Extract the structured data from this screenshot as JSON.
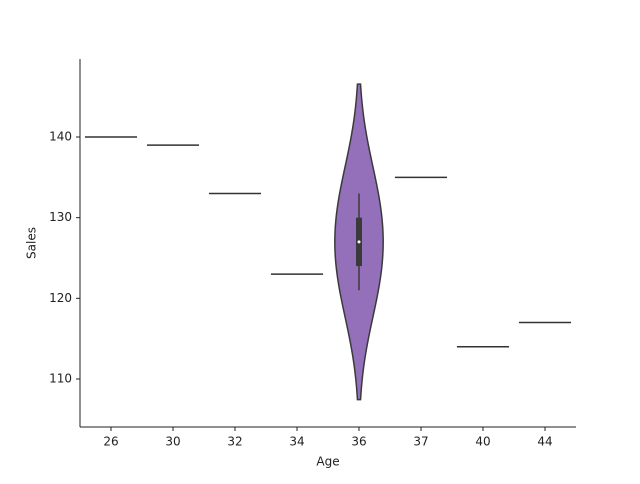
{
  "chart_data": {
    "type": "violin",
    "x_label": "Age",
    "y_label": "Sales",
    "categories": [
      "26",
      "30",
      "32",
      "34",
      "36",
      "37",
      "40",
      "44"
    ],
    "values": [
      [
        140
      ],
      [
        139
      ],
      [
        133
      ],
      [
        123
      ],
      [
        121,
        127,
        133
      ],
      [
        135
      ],
      [
        114
      ],
      [
        117
      ]
    ],
    "color": "#9470bb",
    "ylim": [
      104.05,
      149.67
    ],
    "yticks": [
      110,
      120,
      130,
      140
    ]
  }
}
